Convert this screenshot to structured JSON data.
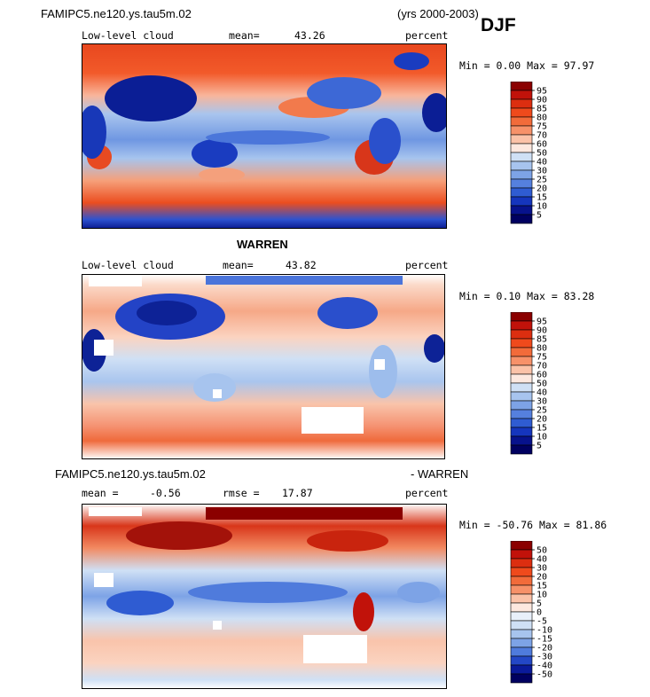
{
  "header": {
    "case_title": "FAMIPC5.ne120.ys.tau5m.02",
    "years": "(yrs 2000-2003)",
    "season": "DJF"
  },
  "panels": [
    {
      "variable": "Low-level cloud",
      "stat1_label": "mean=",
      "stat1_value": "43.26",
      "units": "percent",
      "minmax": "Min =   0.00 Max =  97.97"
    },
    {
      "title": "WARREN",
      "variable": "Low-level cloud",
      "stat1_label": "mean=",
      "stat1_value": "43.82",
      "units": "percent",
      "minmax": "Min =   0.10 Max =  83.28"
    },
    {
      "title_left": "FAMIPC5.ne120.ys.tau5m.02",
      "title_right": "- WARREN",
      "stat1_label": "mean =",
      "stat1_value": "-0.56",
      "stat2_label": "rmse =",
      "stat2_value": "17.87",
      "units": "percent",
      "minmax": "Min = -50.76 Max =  81.86"
    }
  ],
  "chart_data": [
    {
      "type": "heatmap",
      "title": "Low-level cloud (FAMIPC5.ne120.ys.tau5m.02, DJF 2000-2003)",
      "units": "percent",
      "mean": 43.26,
      "min": 0.0,
      "max": 97.97,
      "colorbar_levels": [
        "95",
        "90",
        "85",
        "80",
        "75",
        "70",
        "60",
        "50",
        "40",
        "30",
        "25",
        "20",
        "15",
        "10",
        "5"
      ],
      "colorbar_colors": [
        "#8b0000",
        "#c1120a",
        "#dc2e10",
        "#ef4a1c",
        "#f26b3a",
        "#f79169",
        "#fbc2a8",
        "#fde8df",
        "#cfe0f5",
        "#a7c4ee",
        "#7da3e6",
        "#5580de",
        "#2f5cd2",
        "#1535bd",
        "#07128c",
        "#000060"
      ]
    },
    {
      "type": "heatmap",
      "title": "Low-level cloud (WARREN, DJF)",
      "units": "percent",
      "mean": 43.82,
      "min": 0.1,
      "max": 83.28,
      "colorbar_levels": [
        "95",
        "90",
        "85",
        "80",
        "75",
        "70",
        "60",
        "50",
        "40",
        "30",
        "25",
        "20",
        "15",
        "10",
        "5"
      ],
      "colorbar_colors": [
        "#8b0000",
        "#c1120a",
        "#dc2e10",
        "#ef4a1c",
        "#f26b3a",
        "#f79169",
        "#fbc2a8",
        "#fde8df",
        "#cfe0f5",
        "#a7c4ee",
        "#7da3e6",
        "#5580de",
        "#2f5cd2",
        "#1535bd",
        "#07128c",
        "#000060"
      ]
    },
    {
      "type": "heatmap",
      "title": "Low-level cloud difference (FAMIPC5.ne120.ys.tau5m.02 - WARREN)",
      "units": "percent",
      "mean": -0.56,
      "rmse": 17.87,
      "min": -50.76,
      "max": 81.86,
      "colorbar_levels": [
        "50",
        "40",
        "30",
        "20",
        "15",
        "10",
        "5",
        "0",
        "-5",
        "-10",
        "-15",
        "-20",
        "-30",
        "-40",
        "-50"
      ],
      "colorbar_colors": [
        "#8b0000",
        "#c1120a",
        "#dc2e10",
        "#ef4a1c",
        "#f26b3a",
        "#f79169",
        "#fbc2a8",
        "#fde8df",
        "#e8effa",
        "#cfe0f5",
        "#a7c4ee",
        "#7da3e6",
        "#4f7bdc",
        "#2347c6",
        "#0a1a9a",
        "#000060"
      ]
    }
  ]
}
